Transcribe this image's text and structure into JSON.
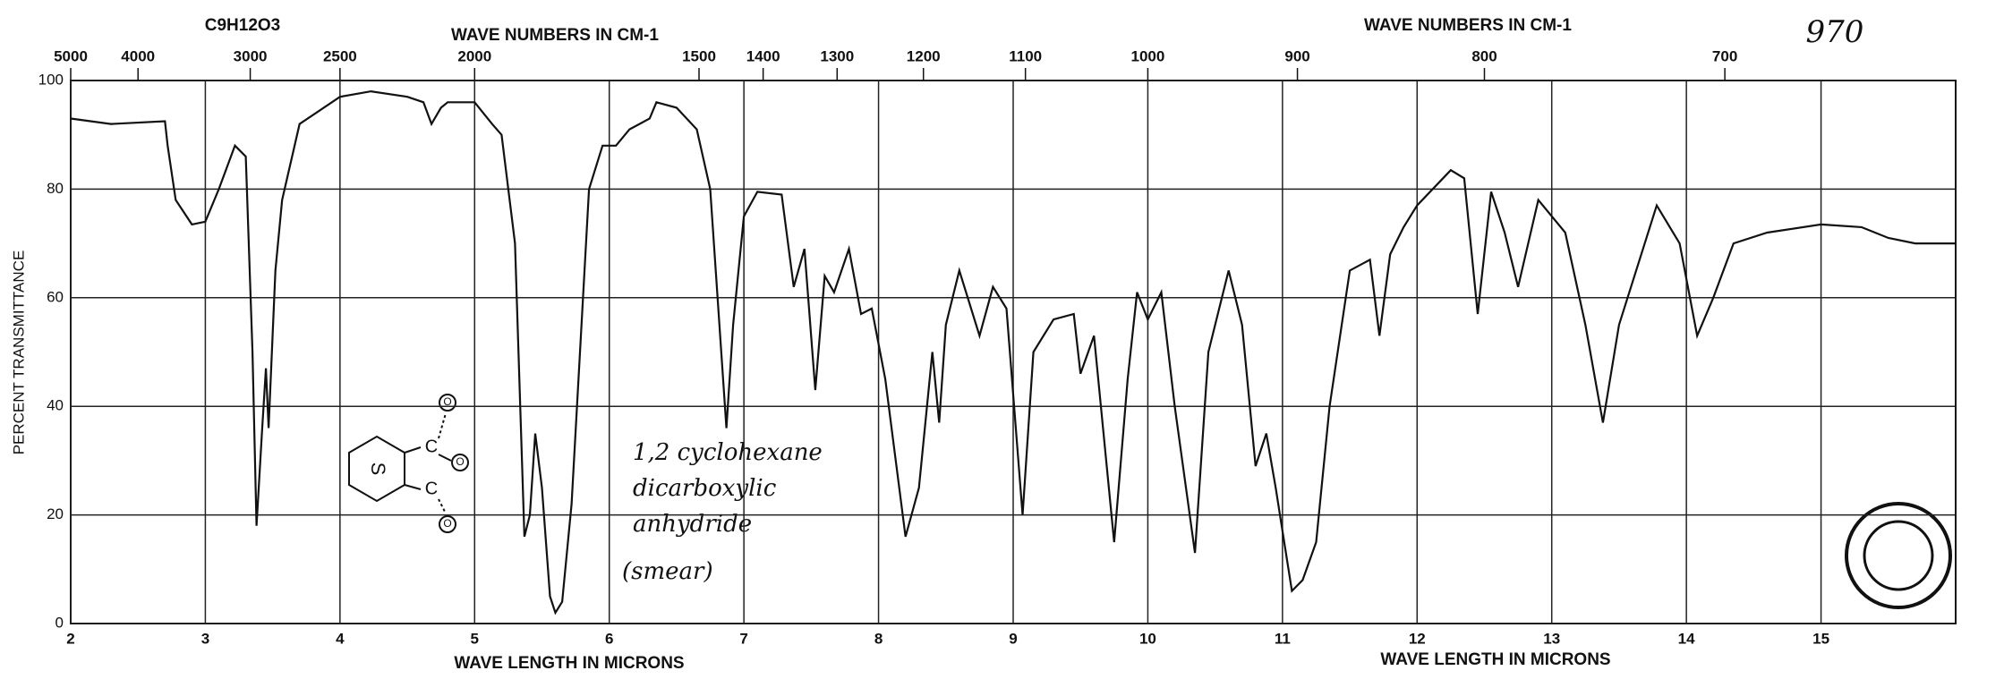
{
  "chart_data": {
    "type": "line",
    "formula": "C9H12O3",
    "top_axis_titles": [
      "WAVE NUMBERS IN CM-1",
      "WAVE NUMBERS IN CM-1"
    ],
    "bottom_axis_titles": [
      "WAVE LENGTH IN MICRONS",
      "WAVE LENGTH IN MICRONS"
    ],
    "ylabel": "PERCENT TRANSMITTANCE",
    "catalog_number": "970",
    "annotation": [
      "1,2 cyclohexane",
      "dicarboxylic",
      "anhydride",
      "(smear)"
    ],
    "structure": {
      "ring": "S",
      "atoms": [
        "C",
        "C",
        "O",
        "O",
        "O"
      ]
    },
    "xlim": [
      2,
      16
    ],
    "xticks": [
      2,
      3,
      4,
      5,
      6,
      7,
      8,
      9,
      10,
      11,
      12,
      13,
      14,
      15
    ],
    "x2ticks": [
      5000,
      4000,
      3000,
      2500,
      2000,
      1500,
      1400,
      1300,
      1200,
      1100,
      1000,
      900,
      800,
      700
    ],
    "ylim": [
      0,
      100
    ],
    "yticks": [
      0,
      20,
      40,
      60,
      80,
      100
    ],
    "grid": true,
    "series": [
      {
        "name": "spectrum",
        "color": "#111111",
        "x": [
          2.0,
          2.3,
          2.7,
          2.72,
          2.78,
          2.9,
          3.0,
          3.1,
          3.22,
          3.3,
          3.35,
          3.38,
          3.42,
          3.45,
          3.47,
          3.52,
          3.57,
          3.7,
          4.0,
          4.23,
          4.5,
          4.62,
          4.68,
          4.75,
          4.8,
          5.0,
          5.13,
          5.2,
          5.3,
          5.37,
          5.41,
          5.45,
          5.5,
          5.56,
          5.6,
          5.65,
          5.72,
          5.85,
          5.95,
          6.05,
          6.15,
          6.3,
          6.35,
          6.5,
          6.65,
          6.75,
          6.87,
          6.92,
          7.0,
          7.1,
          7.28,
          7.37,
          7.45,
          7.53,
          7.6,
          7.67,
          7.78,
          7.87,
          7.95,
          8.05,
          8.2,
          8.3,
          8.4,
          8.45,
          8.5,
          8.6,
          8.75,
          8.85,
          8.95,
          9.07,
          9.15,
          9.3,
          9.45,
          9.5,
          9.6,
          9.75,
          9.85,
          9.92,
          10.0,
          10.1,
          10.2,
          10.35,
          10.45,
          10.6,
          10.7,
          10.8,
          10.88,
          10.95,
          11.07,
          11.15,
          11.25,
          11.35,
          11.5,
          11.65,
          11.72,
          11.8,
          11.9,
          12.0,
          12.25,
          12.35,
          12.45,
          12.55,
          12.65,
          12.75,
          12.9,
          13.1,
          13.25,
          13.38,
          13.5,
          13.78,
          13.95,
          14.08,
          14.2,
          14.35,
          14.6,
          15.0,
          15.3,
          15.5,
          15.7,
          16.0
        ],
        "values": [
          93,
          92,
          92.5,
          88,
          78,
          73.5,
          74,
          80,
          88,
          86,
          50,
          18,
          35,
          47,
          36,
          65,
          78,
          92,
          97,
          98,
          97,
          96,
          92,
          95,
          96,
          96,
          92,
          90,
          70,
          16,
          20,
          35,
          25,
          5,
          2,
          4,
          22,
          80,
          88,
          88,
          91,
          93,
          96,
          95,
          91,
          80,
          36,
          55,
          75,
          79.5,
          79,
          62,
          69,
          43,
          64,
          61,
          69,
          57,
          58,
          45,
          16,
          25,
          50,
          37,
          55,
          65,
          53,
          62,
          58,
          20,
          50,
          56,
          57,
          46,
          53,
          15,
          45,
          61,
          56,
          61,
          40,
          13,
          50,
          65,
          55,
          29,
          35,
          25,
          6,
          8,
          15,
          40,
          65,
          67,
          53,
          68,
          73,
          77,
          83.5,
          82,
          57,
          79.5,
          72,
          62,
          78,
          72,
          55,
          37,
          55,
          77,
          70,
          53,
          60,
          70,
          72,
          73.5,
          73,
          71,
          70,
          70
        ]
      }
    ]
  }
}
